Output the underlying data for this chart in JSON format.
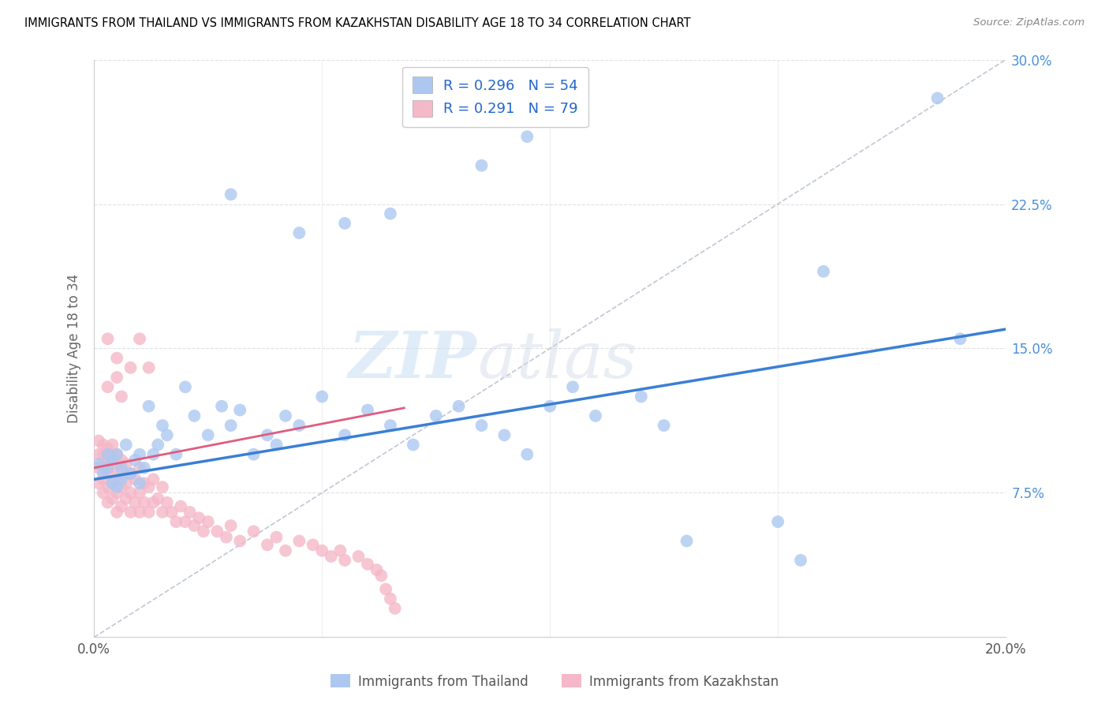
{
  "title": "IMMIGRANTS FROM THAILAND VS IMMIGRANTS FROM KAZAKHSTAN DISABILITY AGE 18 TO 34 CORRELATION CHART",
  "source": "Source: ZipAtlas.com",
  "ylabel": "Disability Age 18 to 34",
  "xlim": [
    0.0,
    0.2
  ],
  "ylim": [
    0.0,
    0.3
  ],
  "x_ticks": [
    0.0,
    0.05,
    0.1,
    0.15,
    0.2
  ],
  "x_tick_labels": [
    "0.0%",
    "",
    "",
    "",
    "20.0%"
  ],
  "y_ticks": [
    0.0,
    0.075,
    0.15,
    0.225,
    0.3
  ],
  "y_tick_labels": [
    "",
    "7.5%",
    "15.0%",
    "22.5%",
    "30.0%"
  ],
  "thailand_color": "#adc8f0",
  "thailand_line_color": "#3a7fd5",
  "kazakhstan_color": "#f5b8c8",
  "kazakhstan_line_color": "#e05c80",
  "diagonal_color": "#c0c8d4",
  "legend_R_thailand": "0.296",
  "legend_N_thailand": "54",
  "legend_R_kazakhstan": "0.291",
  "legend_N_kazakhstan": "79",
  "watermark_zip": "ZIP",
  "watermark_atlas": "atlas",
  "thailand_x": [
    0.001,
    0.002,
    0.003,
    0.003,
    0.004,
    0.004,
    0.005,
    0.005,
    0.006,
    0.006,
    0.007,
    0.008,
    0.009,
    0.01,
    0.01,
    0.011,
    0.012,
    0.013,
    0.014,
    0.015,
    0.016,
    0.018,
    0.02,
    0.022,
    0.025,
    0.028,
    0.03,
    0.032,
    0.035,
    0.038,
    0.04,
    0.042,
    0.045,
    0.05,
    0.055,
    0.06,
    0.065,
    0.07,
    0.075,
    0.08,
    0.085,
    0.09,
    0.095,
    0.1,
    0.105,
    0.11,
    0.12,
    0.125,
    0.13,
    0.15,
    0.155,
    0.16,
    0.185,
    0.19
  ],
  "thailand_y": [
    0.09,
    0.085,
    0.088,
    0.095,
    0.08,
    0.092,
    0.078,
    0.095,
    0.082,
    0.088,
    0.1,
    0.085,
    0.092,
    0.08,
    0.095,
    0.088,
    0.12,
    0.095,
    0.1,
    0.11,
    0.105,
    0.095,
    0.13,
    0.115,
    0.105,
    0.12,
    0.11,
    0.118,
    0.095,
    0.105,
    0.1,
    0.115,
    0.11,
    0.125,
    0.105,
    0.118,
    0.11,
    0.1,
    0.115,
    0.12,
    0.11,
    0.105,
    0.095,
    0.12,
    0.13,
    0.115,
    0.125,
    0.11,
    0.05,
    0.06,
    0.04,
    0.19,
    0.28,
    0.155
  ],
  "kazakhstan_x": [
    0.001,
    0.001,
    0.001,
    0.001,
    0.002,
    0.002,
    0.002,
    0.002,
    0.002,
    0.003,
    0.003,
    0.003,
    0.003,
    0.003,
    0.004,
    0.004,
    0.004,
    0.004,
    0.004,
    0.005,
    0.005,
    0.005,
    0.005,
    0.005,
    0.006,
    0.006,
    0.006,
    0.006,
    0.007,
    0.007,
    0.007,
    0.008,
    0.008,
    0.008,
    0.009,
    0.009,
    0.01,
    0.01,
    0.01,
    0.011,
    0.011,
    0.012,
    0.012,
    0.013,
    0.013,
    0.014,
    0.015,
    0.015,
    0.016,
    0.017,
    0.018,
    0.019,
    0.02,
    0.021,
    0.022,
    0.023,
    0.024,
    0.025,
    0.027,
    0.029,
    0.03,
    0.032,
    0.035,
    0.038,
    0.04,
    0.042,
    0.045,
    0.048,
    0.05,
    0.052,
    0.054,
    0.055,
    0.058,
    0.06,
    0.062,
    0.063,
    0.064,
    0.065,
    0.066
  ],
  "kazakhstan_y": [
    0.08,
    0.088,
    0.095,
    0.102,
    0.075,
    0.082,
    0.09,
    0.095,
    0.1,
    0.07,
    0.078,
    0.085,
    0.092,
    0.098,
    0.072,
    0.08,
    0.088,
    0.095,
    0.1,
    0.065,
    0.075,
    0.082,
    0.09,
    0.095,
    0.068,
    0.078,
    0.085,
    0.092,
    0.072,
    0.08,
    0.09,
    0.065,
    0.075,
    0.085,
    0.07,
    0.082,
    0.065,
    0.075,
    0.088,
    0.07,
    0.08,
    0.065,
    0.078,
    0.07,
    0.082,
    0.072,
    0.065,
    0.078,
    0.07,
    0.065,
    0.06,
    0.068,
    0.06,
    0.065,
    0.058,
    0.062,
    0.055,
    0.06,
    0.055,
    0.052,
    0.058,
    0.05,
    0.055,
    0.048,
    0.052,
    0.045,
    0.05,
    0.048,
    0.045,
    0.042,
    0.045,
    0.04,
    0.042,
    0.038,
    0.035,
    0.032,
    0.025,
    0.02,
    0.015
  ],
  "kz_outliers_x": [
    0.003,
    0.003,
    0.005,
    0.005,
    0.006,
    0.008,
    0.01,
    0.012
  ],
  "kz_outliers_y": [
    0.155,
    0.13,
    0.145,
    0.135,
    0.125,
    0.14,
    0.155,
    0.14
  ],
  "th_outlier_x": [
    0.03,
    0.045,
    0.055,
    0.065,
    0.085,
    0.095
  ],
  "th_outlier_y": [
    0.23,
    0.21,
    0.215,
    0.22,
    0.245,
    0.26
  ]
}
